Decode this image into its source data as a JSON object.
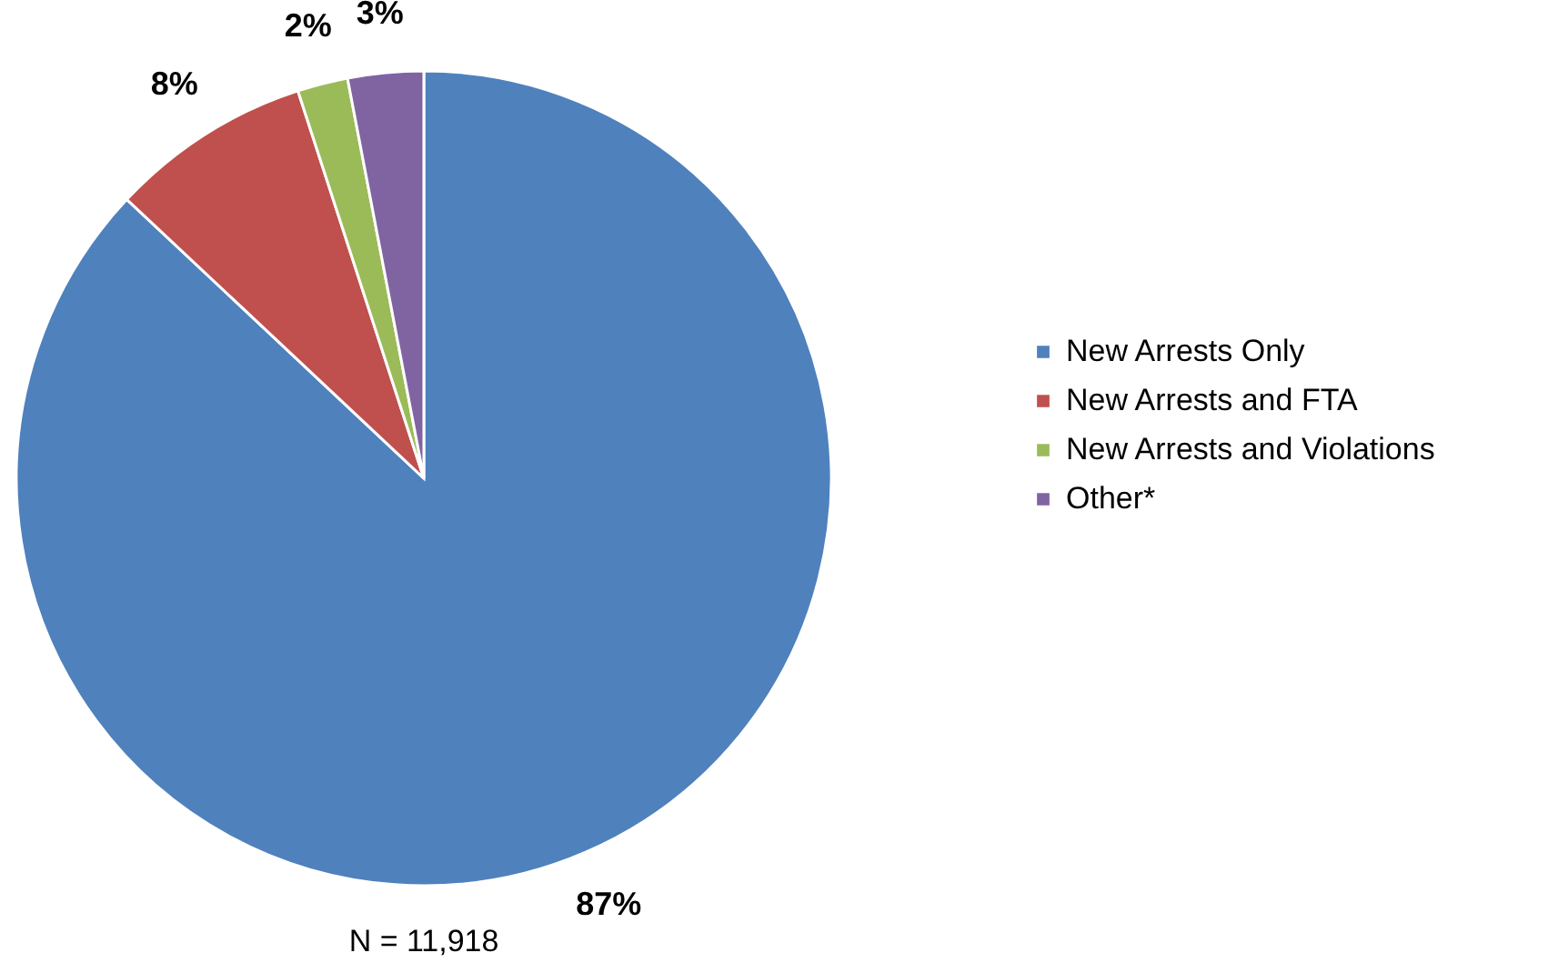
{
  "chart_data": {
    "type": "pie",
    "categories": [
      "New Arrests Only",
      "New Arrests and FTA",
      "New Arrests and Violations",
      "Other*"
    ],
    "values": [
      87,
      8,
      2,
      3
    ],
    "colors": [
      "#4f81bd",
      "#c0504d",
      "#9bbb59",
      "#8064a2"
    ],
    "value_labels": [
      "87%",
      "8%",
      "2%",
      "3%"
    ],
    "legend": "right",
    "annotations": [
      "N = 11,918"
    ]
  }
}
